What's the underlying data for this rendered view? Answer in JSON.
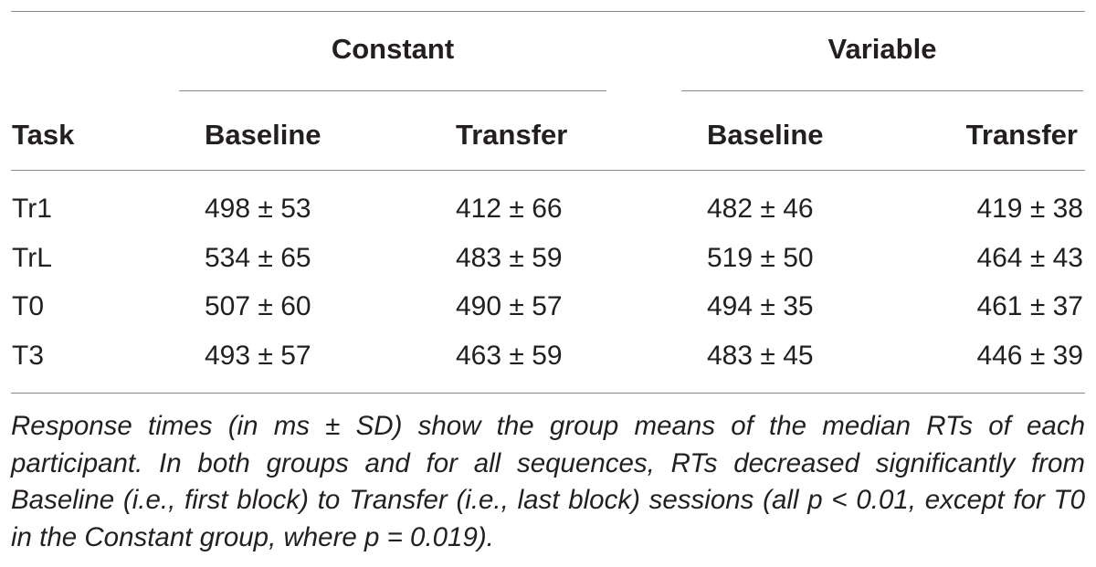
{
  "table": {
    "group_headers": [
      "Constant",
      "Variable"
    ],
    "column_headers": [
      "Task",
      "Baseline",
      "Transfer",
      "Baseline",
      "Transfer"
    ],
    "rows": [
      {
        "task": "Tr1",
        "cells": [
          "498 ± 53",
          "412 ± 66",
          "482 ± 46",
          "419 ± 38"
        ]
      },
      {
        "task": "TrL",
        "cells": [
          "534 ± 65",
          "483 ± 59",
          "519 ± 50",
          "464 ± 43"
        ]
      },
      {
        "task": "T0",
        "cells": [
          "507 ± 60",
          "490 ± 57",
          "494 ± 35",
          "461 ± 37"
        ]
      },
      {
        "task": "T3",
        "cells": [
          "493 ± 57",
          "463 ± 59",
          "483 ± 45",
          "446 ± 39"
        ]
      }
    ],
    "footnote": "Response times (in ms ± SD) show the group means of the median RTs of each participant. In both groups and for all sequences, RTs decreased significantly from Baseline (i.e., first block) to Transfer (i.e., last block) sessions (all p < 0.01, except for T0 in the Constant group, where p = 0.019)."
  }
}
